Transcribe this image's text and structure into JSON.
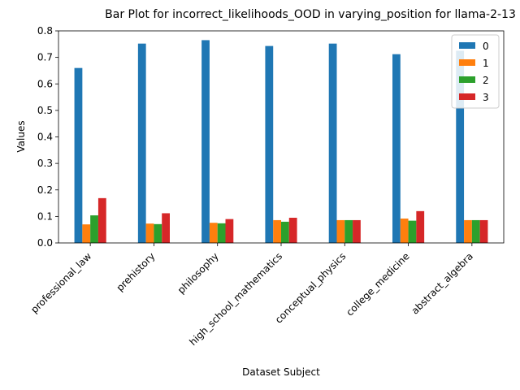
{
  "chart_data": {
    "type": "bar",
    "title": "Bar Plot for incorrect_likelihoods_OOD in varying_position for llama-2-13",
    "xlabel": "Dataset Subject",
    "ylabel": "Values",
    "ylim": [
      0,
      0.8
    ],
    "yticks": [
      "0.0",
      "0.1",
      "0.2",
      "0.3",
      "0.4",
      "0.5",
      "0.6",
      "0.7",
      "0.8"
    ],
    "legend_position": "top-right",
    "grid": false,
    "categories": [
      "professional_law",
      "prehistory",
      "philosophy",
      "high_school_mathematics",
      "conceptual_physics",
      "college_medicine",
      "abstract_algebra"
    ],
    "series": [
      {
        "name": "0",
        "color": "#1f77b4",
        "values": [
          0.66,
          0.752,
          0.765,
          0.743,
          0.752,
          0.712,
          0.725
        ]
      },
      {
        "name": "1",
        "color": "#ff7f0e",
        "values": [
          0.07,
          0.073,
          0.076,
          0.086,
          0.086,
          0.092,
          0.086
        ]
      },
      {
        "name": "2",
        "color": "#2ca02c",
        "values": [
          0.104,
          0.071,
          0.074,
          0.08,
          0.086,
          0.084,
          0.086
        ]
      },
      {
        "name": "3",
        "color": "#d62728",
        "values": [
          0.169,
          0.112,
          0.09,
          0.095,
          0.086,
          0.12,
          0.086
        ]
      }
    ]
  }
}
